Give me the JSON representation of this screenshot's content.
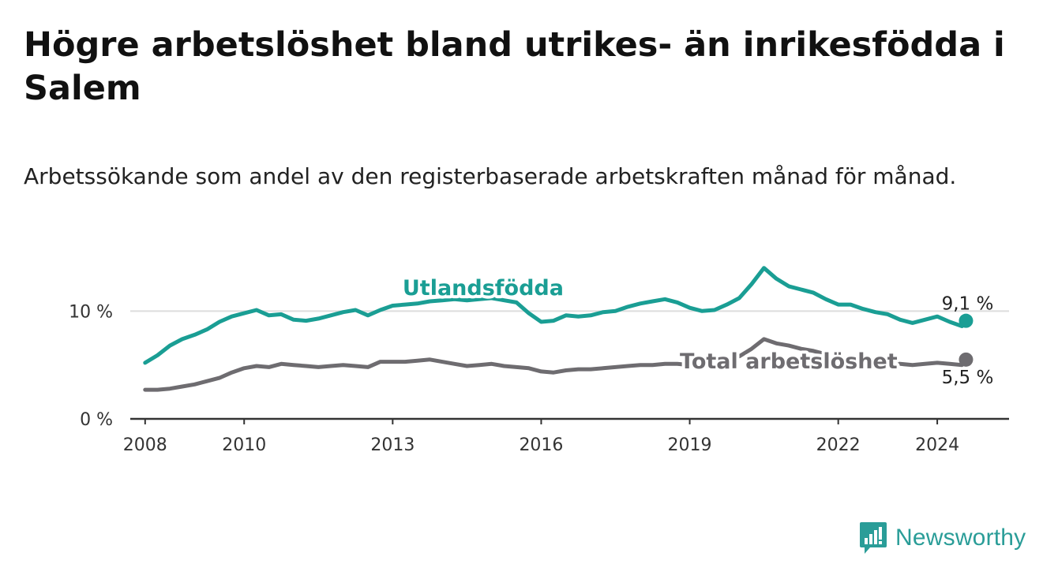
{
  "title": "Högre arbetslöshet bland utrikes- än inrikesfödda i Salem",
  "subtitle": "Arbetssökande som andel av den registerbaserade arbetskraften månad för månad.",
  "brand": {
    "name": "Newsworthy"
  },
  "colors": {
    "foreign": "#1a9e94",
    "total": "#6e6c70",
    "axis": "#333333",
    "grid": "#dddddd"
  },
  "chart_data": {
    "type": "line",
    "x_range": [
      2007.7,
      2025.45
    ],
    "ylim": [
      0,
      18
    ],
    "y_ticks": [
      {
        "value": 0,
        "label": "0 %"
      },
      {
        "value": 10,
        "label": "10 %"
      }
    ],
    "x_ticks": [
      {
        "value": 2008,
        "label": "2008"
      },
      {
        "value": 2010,
        "label": "2010"
      },
      {
        "value": 2013,
        "label": "2013"
      },
      {
        "value": 2016,
        "label": "2016"
      },
      {
        "value": 2019,
        "label": "2019"
      },
      {
        "value": 2022,
        "label": "2022"
      },
      {
        "value": 2024,
        "label": "2024"
      }
    ],
    "series": [
      {
        "name": "Utlandsfödda",
        "key": "foreign",
        "last_label": "9,1 %",
        "points": [
          [
            2008,
            5.2
          ],
          [
            2008.25,
            5.9
          ],
          [
            2008.5,
            6.8
          ],
          [
            2008.75,
            7.4
          ],
          [
            2009,
            7.8
          ],
          [
            2009.25,
            8.3
          ],
          [
            2009.5,
            9.0
          ],
          [
            2009.75,
            9.5
          ],
          [
            2010,
            9.8
          ],
          [
            2010.25,
            10.1
          ],
          [
            2010.5,
            9.6
          ],
          [
            2010.75,
            9.7
          ],
          [
            2011,
            9.2
          ],
          [
            2011.25,
            9.1
          ],
          [
            2011.5,
            9.3
          ],
          [
            2011.75,
            9.6
          ],
          [
            2012,
            9.9
          ],
          [
            2012.25,
            10.1
          ],
          [
            2012.5,
            9.6
          ],
          [
            2012.75,
            10.1
          ],
          [
            2013,
            10.5
          ],
          [
            2013.25,
            10.6
          ],
          [
            2013.5,
            10.7
          ],
          [
            2013.75,
            10.9
          ],
          [
            2014,
            11.0
          ],
          [
            2014.25,
            11.1
          ],
          [
            2014.5,
            11.0
          ],
          [
            2014.75,
            11.1
          ],
          [
            2015,
            11.2
          ],
          [
            2015.25,
            11.0
          ],
          [
            2015.5,
            10.8
          ],
          [
            2015.75,
            9.8
          ],
          [
            2016,
            9.0
          ],
          [
            2016.25,
            9.1
          ],
          [
            2016.5,
            9.6
          ],
          [
            2016.75,
            9.5
          ],
          [
            2017,
            9.6
          ],
          [
            2017.25,
            9.9
          ],
          [
            2017.5,
            10.0
          ],
          [
            2017.75,
            10.4
          ],
          [
            2018,
            10.7
          ],
          [
            2018.25,
            10.9
          ],
          [
            2018.5,
            11.1
          ],
          [
            2018.75,
            10.8
          ],
          [
            2019,
            10.3
          ],
          [
            2019.25,
            10.0
          ],
          [
            2019.5,
            10.1
          ],
          [
            2019.75,
            10.6
          ],
          [
            2020,
            11.2
          ],
          [
            2020.25,
            12.5
          ],
          [
            2020.5,
            14.0
          ],
          [
            2020.75,
            13.0
          ],
          [
            2021,
            12.3
          ],
          [
            2021.25,
            12.0
          ],
          [
            2021.5,
            11.7
          ],
          [
            2021.75,
            11.1
          ],
          [
            2022,
            10.6
          ],
          [
            2022.25,
            10.6
          ],
          [
            2022.5,
            10.2
          ],
          [
            2022.75,
            9.9
          ],
          [
            2023,
            9.7
          ],
          [
            2023.25,
            9.2
          ],
          [
            2023.5,
            8.9
          ],
          [
            2023.75,
            9.2
          ],
          [
            2024,
            9.5
          ],
          [
            2024.25,
            9.0
          ],
          [
            2024.5,
            8.6
          ],
          [
            2024.58,
            9.1
          ]
        ]
      },
      {
        "name": "Total arbetslöshet",
        "key": "total",
        "last_label": "5,5 %",
        "points": [
          [
            2008,
            2.7
          ],
          [
            2008.25,
            2.7
          ],
          [
            2008.5,
            2.8
          ],
          [
            2008.75,
            3.0
          ],
          [
            2009,
            3.2
          ],
          [
            2009.25,
            3.5
          ],
          [
            2009.5,
            3.8
          ],
          [
            2009.75,
            4.3
          ],
          [
            2010,
            4.7
          ],
          [
            2010.25,
            4.9
          ],
          [
            2010.5,
            4.8
          ],
          [
            2010.75,
            5.1
          ],
          [
            2011,
            5.0
          ],
          [
            2011.25,
            4.9
          ],
          [
            2011.5,
            4.8
          ],
          [
            2011.75,
            4.9
          ],
          [
            2012,
            5.0
          ],
          [
            2012.25,
            4.9
          ],
          [
            2012.5,
            4.8
          ],
          [
            2012.75,
            5.3
          ],
          [
            2013,
            5.3
          ],
          [
            2013.25,
            5.3
          ],
          [
            2013.5,
            5.4
          ],
          [
            2013.75,
            5.5
          ],
          [
            2014,
            5.3
          ],
          [
            2014.25,
            5.1
          ],
          [
            2014.5,
            4.9
          ],
          [
            2014.75,
            5.0
          ],
          [
            2015,
            5.1
          ],
          [
            2015.25,
            4.9
          ],
          [
            2015.5,
            4.8
          ],
          [
            2015.75,
            4.7
          ],
          [
            2016,
            4.4
          ],
          [
            2016.25,
            4.3
          ],
          [
            2016.5,
            4.5
          ],
          [
            2016.75,
            4.6
          ],
          [
            2017,
            4.6
          ],
          [
            2017.25,
            4.7
          ],
          [
            2017.5,
            4.8
          ],
          [
            2017.75,
            4.9
          ],
          [
            2018,
            5.0
          ],
          [
            2018.25,
            5.0
          ],
          [
            2018.5,
            5.1
          ],
          [
            2018.75,
            5.1
          ],
          [
            2019,
            5.0
          ],
          [
            2019.25,
            5.1
          ],
          [
            2019.5,
            5.2
          ],
          [
            2019.75,
            5.4
          ],
          [
            2020,
            5.8
          ],
          [
            2020.25,
            6.5
          ],
          [
            2020.5,
            7.4
          ],
          [
            2020.75,
            7.0
          ],
          [
            2021,
            6.8
          ],
          [
            2021.25,
            6.5
          ],
          [
            2021.5,
            6.3
          ],
          [
            2021.75,
            6.0
          ],
          [
            2022,
            5.7
          ],
          [
            2022.25,
            5.6
          ],
          [
            2022.5,
            5.5
          ],
          [
            2022.75,
            5.4
          ],
          [
            2023,
            5.3
          ],
          [
            2023.25,
            5.1
          ],
          [
            2023.5,
            5.0
          ],
          [
            2023.75,
            5.1
          ],
          [
            2024,
            5.2
          ],
          [
            2024.25,
            5.1
          ],
          [
            2024.5,
            5.0
          ],
          [
            2024.58,
            5.5
          ]
        ]
      }
    ],
    "annotations": [
      {
        "text": "Utlandsfödda",
        "series": "foreign",
        "x": 2013.2,
        "y": 11.5
      },
      {
        "text": "Total arbetslöshet",
        "series": "total",
        "x": 2018.8,
        "y": 4.7
      }
    ]
  }
}
